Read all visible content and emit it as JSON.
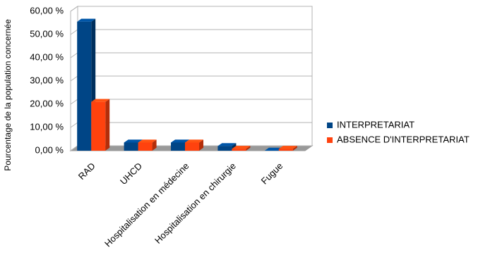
{
  "chart_data": {
    "type": "bar3d",
    "y_axis_label": "Pourcentage de la population concernée",
    "categories": [
      "RAD",
      "UHCD",
      "Hospitalisation en médecine",
      "Hospitalisation en chirurgie",
      "Fugue"
    ],
    "series": [
      {
        "name": "INTERPRETARIAT",
        "color": "#004586",
        "values": [
          55.5,
          3.5,
          3.5,
          2,
          0
        ]
      },
      {
        "name": "ABSENCE D'INTERPRETARIAT",
        "color": "#ff420e",
        "values": [
          21,
          3.5,
          3.5,
          0.8,
          0.8
        ]
      }
    ],
    "ylim": [
      0,
      60
    ],
    "yticks": [
      {
        "value": 0,
        "label": "0,00 %"
      },
      {
        "value": 10,
        "label": "10,00 %"
      },
      {
        "value": 20,
        "label": "20,00 %"
      },
      {
        "value": 30,
        "label": "30,00 %"
      },
      {
        "value": 40,
        "label": "40,00 %"
      },
      {
        "value": 50,
        "label": "50,00 %"
      },
      {
        "value": 60,
        "label": "60,00 %"
      }
    ],
    "grid": true,
    "legend": "right"
  }
}
